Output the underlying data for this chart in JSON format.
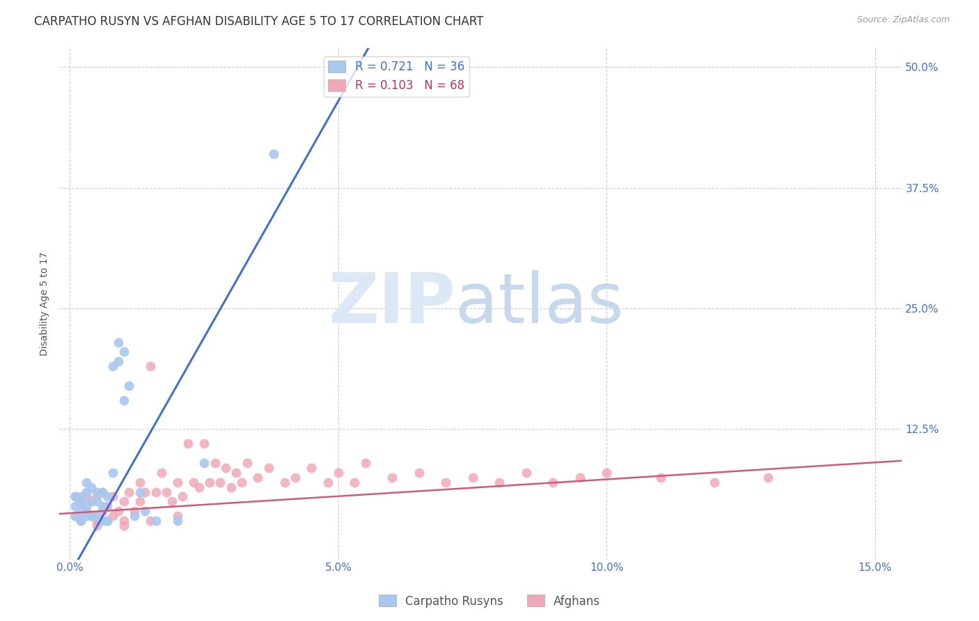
{
  "title": "CARPATHO RUSYN VS AFGHAN DISABILITY AGE 5 TO 17 CORRELATION CHART",
  "source": "Source: ZipAtlas.com",
  "ylabel": "Disability Age 5 to 17",
  "xlabel_ticks": [
    "0.0%",
    "5.0%",
    "10.0%",
    "15.0%"
  ],
  "xlabel_vals": [
    0.0,
    0.05,
    0.1,
    0.15
  ],
  "right_ytick_labels": [
    "50.0%",
    "37.5%",
    "25.0%",
    "12.5%"
  ],
  "right_ytick_vals": [
    0.5,
    0.375,
    0.25,
    0.125
  ],
  "xlim": [
    -0.002,
    0.155
  ],
  "ylim": [
    -0.01,
    0.52
  ],
  "legend1_R": "0.721",
  "legend1_N": "36",
  "legend2_R": "0.103",
  "legend2_N": "68",
  "blue_color": "#a8c8f0",
  "pink_color": "#f0a8b8",
  "blue_line_color": "#4070d0",
  "pink_line_color": "#d05878",
  "blue_scatter_x": [
    0.001,
    0.001,
    0.001,
    0.002,
    0.002,
    0.002,
    0.002,
    0.003,
    0.003,
    0.003,
    0.003,
    0.004,
    0.004,
    0.004,
    0.005,
    0.005,
    0.005,
    0.006,
    0.006,
    0.006,
    0.007,
    0.007,
    0.008,
    0.008,
    0.009,
    0.009,
    0.01,
    0.01,
    0.011,
    0.012,
    0.013,
    0.014,
    0.016,
    0.02,
    0.025,
    0.038
  ],
  "blue_scatter_y": [
    0.035,
    0.045,
    0.055,
    0.03,
    0.04,
    0.048,
    0.055,
    0.035,
    0.045,
    0.06,
    0.07,
    0.035,
    0.05,
    0.065,
    0.035,
    0.05,
    0.06,
    0.03,
    0.045,
    0.06,
    0.03,
    0.055,
    0.08,
    0.19,
    0.195,
    0.215,
    0.155,
    0.205,
    0.17,
    0.035,
    0.06,
    0.04,
    0.03,
    0.03,
    0.09,
    0.41
  ],
  "pink_scatter_x": [
    0.001,
    0.001,
    0.002,
    0.002,
    0.003,
    0.003,
    0.004,
    0.004,
    0.005,
    0.005,
    0.006,
    0.006,
    0.007,
    0.008,
    0.008,
    0.009,
    0.01,
    0.01,
    0.011,
    0.012,
    0.013,
    0.013,
    0.014,
    0.015,
    0.016,
    0.017,
    0.018,
    0.019,
    0.02,
    0.021,
    0.022,
    0.023,
    0.024,
    0.025,
    0.026,
    0.027,
    0.028,
    0.029,
    0.03,
    0.031,
    0.032,
    0.033,
    0.035,
    0.037,
    0.04,
    0.042,
    0.045,
    0.048,
    0.05,
    0.053,
    0.055,
    0.06,
    0.065,
    0.07,
    0.075,
    0.08,
    0.085,
    0.09,
    0.095,
    0.1,
    0.11,
    0.12,
    0.13,
    0.005,
    0.007,
    0.01,
    0.015,
    0.02
  ],
  "pink_scatter_y": [
    0.035,
    0.055,
    0.03,
    0.05,
    0.04,
    0.055,
    0.035,
    0.05,
    0.03,
    0.055,
    0.04,
    0.06,
    0.045,
    0.035,
    0.055,
    0.04,
    0.03,
    0.05,
    0.06,
    0.04,
    0.05,
    0.07,
    0.06,
    0.19,
    0.06,
    0.08,
    0.06,
    0.05,
    0.07,
    0.055,
    0.11,
    0.07,
    0.065,
    0.11,
    0.07,
    0.09,
    0.07,
    0.085,
    0.065,
    0.08,
    0.07,
    0.09,
    0.075,
    0.085,
    0.07,
    0.075,
    0.085,
    0.07,
    0.08,
    0.07,
    0.09,
    0.075,
    0.08,
    0.07,
    0.075,
    0.07,
    0.08,
    0.07,
    0.075,
    0.08,
    0.075,
    0.07,
    0.075,
    0.025,
    0.03,
    0.025,
    0.03,
    0.035
  ],
  "blue_reg_slope": 9.8,
  "blue_reg_intercept": -0.025,
  "pink_reg_slope": 0.35,
  "pink_reg_intercept": 0.038,
  "title_fontsize": 12,
  "source_fontsize": 9,
  "label_fontsize": 10,
  "tick_fontsize": 11,
  "legend_fontsize": 12
}
